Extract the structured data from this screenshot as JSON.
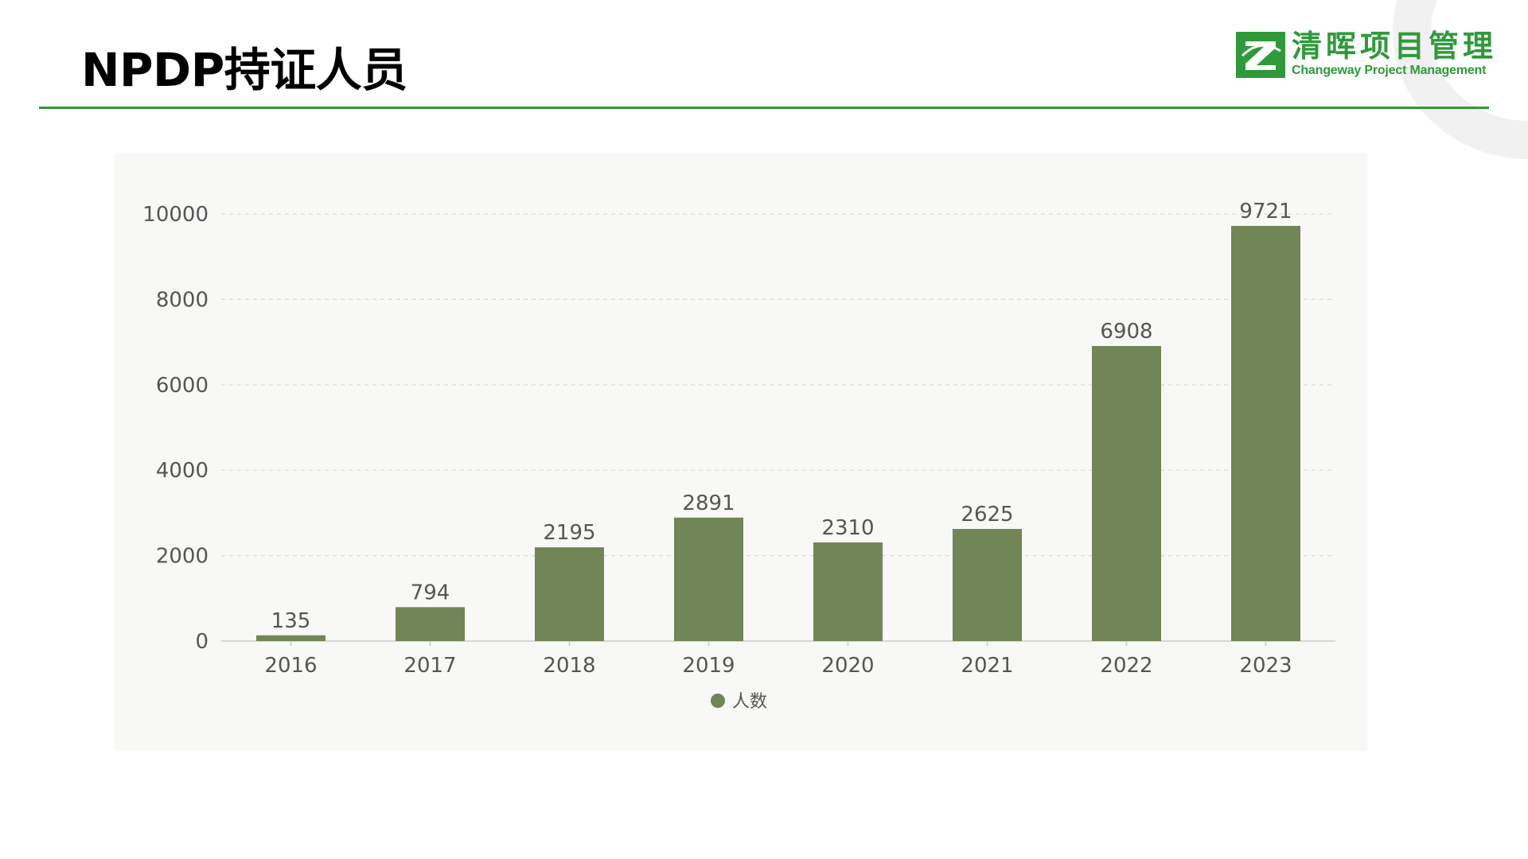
{
  "title": "NPDP持证人员",
  "logo": {
    "name_cn": "清晖项目管理",
    "name_en": "Changeway Project Management",
    "color": "#2e9a3a"
  },
  "chart_data": {
    "type": "bar",
    "categories": [
      "2016",
      "2017",
      "2018",
      "2019",
      "2020",
      "2021",
      "2022",
      "2023"
    ],
    "series": [
      {
        "name": "人数",
        "values": [
          135,
          794,
          2195,
          2891,
          2310,
          2625,
          6908,
          9721
        ],
        "color": "#718556"
      }
    ],
    "title": "",
    "xlabel": "",
    "ylabel": "",
    "ylim": [
      0,
      10000
    ],
    "yticks": [
      0,
      2000,
      4000,
      6000,
      8000,
      10000
    ],
    "grid": true,
    "legend_position": "bottom-center",
    "data_labels": true
  }
}
